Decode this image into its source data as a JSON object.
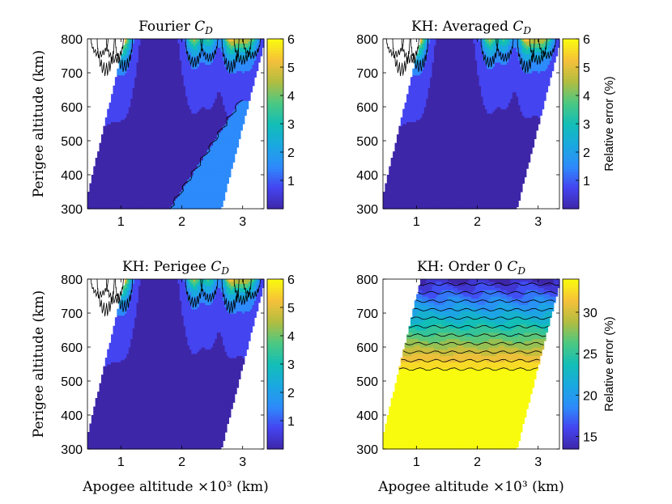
{
  "chart_data": [
    {
      "type": "heatmap",
      "title": "Fourier",
      "title_sym": "C",
      "title_sub": "D",
      "xlabel": "",
      "ylabel": "Perigee altitude (km)",
      "xlim": [
        0.45,
        3.35
      ],
      "ylim": [
        300,
        800
      ],
      "xticks": [
        "1",
        "2",
        "3"
      ],
      "yticks": [
        "300",
        "400",
        "500",
        "600",
        "700",
        "800"
      ],
      "colorbar": {
        "min": 0,
        "max": 6,
        "ticks": [
          "1",
          "2",
          "3",
          "4",
          "5",
          "6"
        ],
        "label": ""
      },
      "fill_level": 0.3,
      "banded_region": {
        "level": 1.4,
        "description": "elevated error near high apogee"
      },
      "peaks": [
        [
          0.65,
          2.6
        ],
        [
          0.75,
          5.2
        ],
        [
          0.9,
          3.4
        ],
        [
          1.05,
          4.6
        ],
        [
          2.2,
          4.0
        ],
        [
          2.45,
          3.2
        ],
        [
          2.8,
          4.8
        ],
        [
          3.0,
          3.6
        ],
        [
          3.15,
          2.8
        ]
      ]
    },
    {
      "type": "heatmap",
      "title": "KH: Averaged",
      "title_sym": "C",
      "title_sub": "D",
      "xlabel": "",
      "ylabel": "",
      "xlim": [
        0.45,
        3.35
      ],
      "ylim": [
        300,
        800
      ],
      "xticks": [
        "1",
        "2",
        "3"
      ],
      "yticks": [
        "300",
        "400",
        "500",
        "600",
        "700",
        "800"
      ],
      "colorbar": {
        "min": 0,
        "max": 6,
        "ticks": [
          "1",
          "2",
          "3",
          "4",
          "5",
          "6"
        ],
        "label": "Relative error (%)"
      },
      "fill_level": 0.3,
      "peaks": [
        [
          0.65,
          2.6
        ],
        [
          0.75,
          5.2
        ],
        [
          0.9,
          3.4
        ],
        [
          1.05,
          4.6
        ],
        [
          2.2,
          4.0
        ],
        [
          2.45,
          3.2
        ],
        [
          2.8,
          4.8
        ],
        [
          3.0,
          3.6
        ],
        [
          3.15,
          2.8
        ]
      ]
    },
    {
      "type": "heatmap",
      "title": "KH: Perigee",
      "title_sym": "C",
      "title_sub": "D",
      "xlabel": "Apogee altitude ×10³ (km)",
      "ylabel": "Perigee altitude (km)",
      "xlim": [
        0.45,
        3.35
      ],
      "ylim": [
        300,
        800
      ],
      "xticks": [
        "1",
        "2",
        "3"
      ],
      "yticks": [
        "300",
        "400",
        "500",
        "600",
        "700",
        "800"
      ],
      "colorbar": {
        "min": 0,
        "max": 6,
        "ticks": [
          "1",
          "2",
          "3",
          "4",
          "5",
          "6"
        ],
        "label": ""
      },
      "fill_level": 0.3,
      "peaks": [
        [
          0.65,
          2.6
        ],
        [
          0.75,
          5.2
        ],
        [
          0.9,
          3.4
        ],
        [
          1.05,
          4.6
        ],
        [
          2.2,
          4.0
        ],
        [
          2.45,
          3.2
        ],
        [
          2.8,
          4.8
        ],
        [
          3.0,
          3.6
        ],
        [
          3.15,
          2.8
        ]
      ]
    },
    {
      "type": "heatmap",
      "title": "KH: Order 0",
      "title_sym": "C",
      "title_sub": "D",
      "xlabel": "Apogee altitude ×10³ (km)",
      "ylabel": "",
      "xlim": [
        0.45,
        3.35
      ],
      "ylim": [
        300,
        800
      ],
      "xticks": [
        "1",
        "2",
        "3"
      ],
      "yticks": [
        "300",
        "400",
        "500",
        "600",
        "700",
        "800"
      ],
      "colorbar": {
        "min": 13.5,
        "max": 34,
        "ticks": [
          "15",
          "20",
          "25",
          "30"
        ],
        "label": "Relative error (%)"
      },
      "fill_level": 34,
      "gradient": {
        "low_altitude_value": 34,
        "transition_start_km": 530,
        "top_value": 14
      }
    }
  ],
  "colors": {
    "parula_low": "#3e26a8",
    "parula_mid": "#1fb6c9",
    "parula_high": "#f9fb0e",
    "background": "#ffffff"
  }
}
